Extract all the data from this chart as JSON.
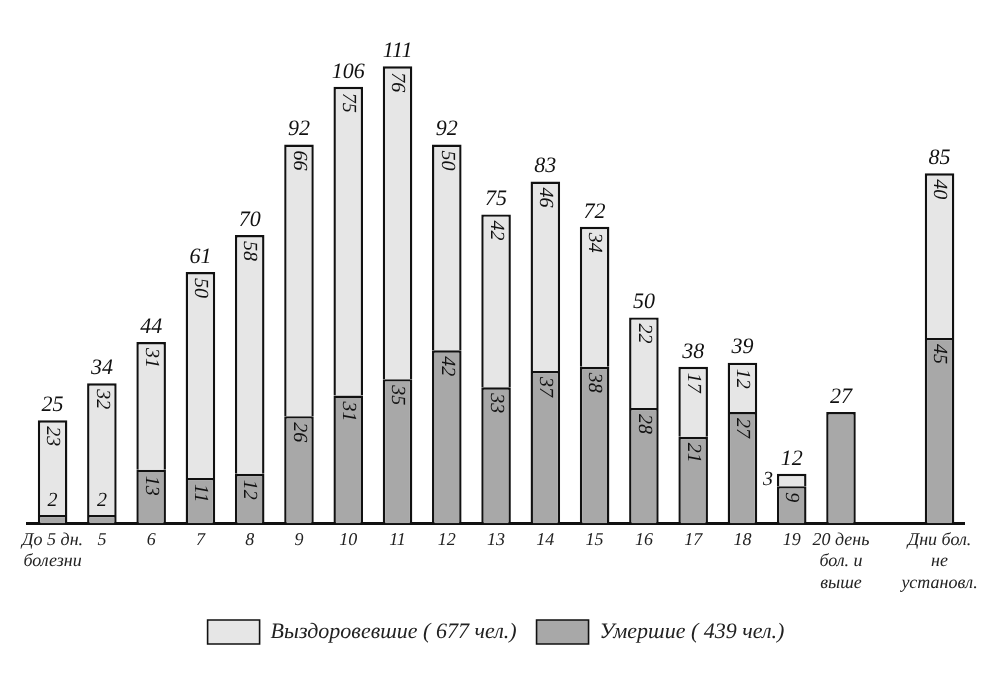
{
  "chart_data": {
    "type": "bar",
    "stacked": true,
    "data_labels": true,
    "legend": "bottom",
    "grid": false,
    "categories": [
      "До 5 дн. болезни",
      "5",
      "6",
      "7",
      "8",
      "9",
      "10",
      "11",
      "12",
      "13",
      "14",
      "15",
      "16",
      "17",
      "18",
      "19",
      "20 день бол. и выше",
      null,
      "Дни бол. не установл."
    ],
    "series": [
      {
        "name": "Умершие ( 439 чел.)",
        "color": "#a8a8a8",
        "values": [
          2,
          2,
          13,
          11,
          12,
          26,
          31,
          35,
          42,
          33,
          37,
          38,
          28,
          21,
          27,
          9,
          27,
          null,
          45
        ],
        "value_labels": [
          "2",
          "2",
          "13",
          "11",
          "12",
          "26",
          "31",
          "35",
          "42",
          "33",
          "37",
          "38",
          "28",
          "21",
          "27",
          "9",
          null,
          null,
          "45"
        ]
      },
      {
        "name": "Выздоровевшие ( 677 чел.)",
        "color": "#e6e6e6",
        "values": [
          23,
          32,
          31,
          50,
          58,
          66,
          75,
          76,
          50,
          42,
          46,
          34,
          22,
          17,
          12,
          3,
          null,
          null,
          40
        ],
        "value_labels": [
          "23",
          "32",
          "31",
          "50",
          "58",
          "66",
          "75",
          "76",
          "50",
          "42",
          "46",
          "34",
          "22",
          "17",
          "12",
          "3",
          null,
          null,
          "40"
        ]
      }
    ],
    "totals": [
      "25",
      "34",
      "44",
      "61",
      "70",
      "92",
      "106",
      "111",
      "92",
      "75",
      "83",
      "72",
      "50",
      "38",
      "39",
      "12",
      "27",
      null,
      "85"
    ]
  }
}
